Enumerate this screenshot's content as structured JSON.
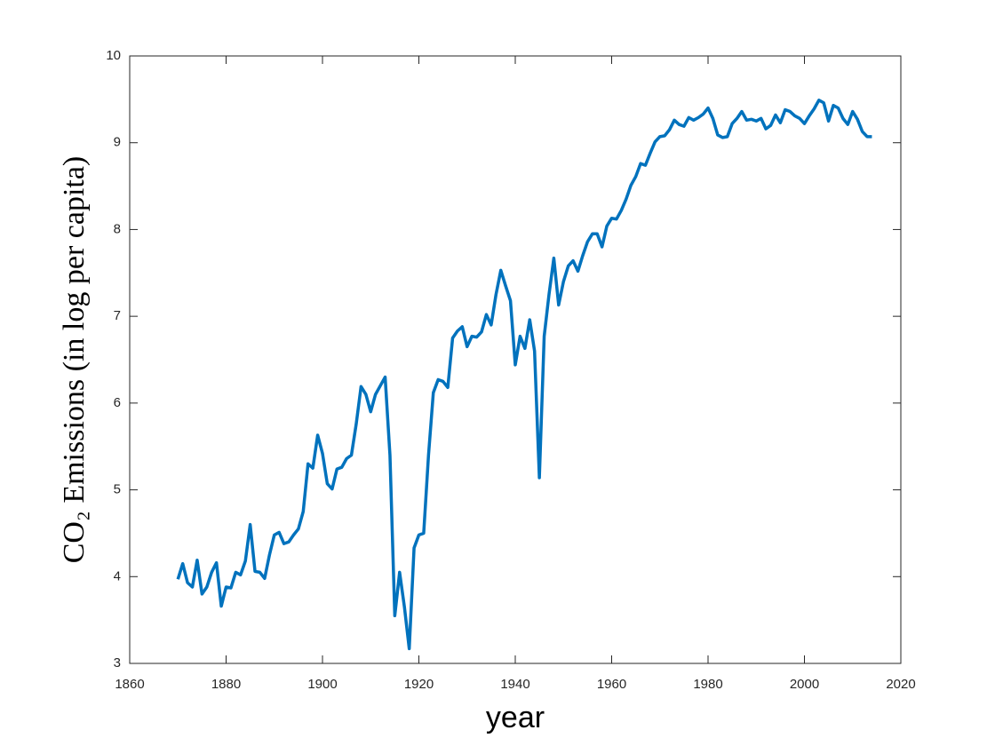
{
  "chart_data": {
    "type": "line",
    "xlabel": "year",
    "ylabel": "CO₂ Emissions (in log per capita)",
    "x": [
      1870,
      1871,
      1872,
      1873,
      1874,
      1875,
      1876,
      1877,
      1878,
      1879,
      1880,
      1881,
      1882,
      1883,
      1884,
      1885,
      1886,
      1887,
      1888,
      1889,
      1890,
      1891,
      1892,
      1893,
      1894,
      1895,
      1896,
      1897,
      1898,
      1899,
      1900,
      1901,
      1902,
      1903,
      1904,
      1905,
      1906,
      1907,
      1908,
      1909,
      1910,
      1911,
      1912,
      1913,
      1914,
      1915,
      1916,
      1917,
      1918,
      1919,
      1920,
      1921,
      1922,
      1923,
      1924,
      1925,
      1926,
      1927,
      1928,
      1929,
      1930,
      1931,
      1932,
      1933,
      1934,
      1935,
      1936,
      1937,
      1938,
      1939,
      1940,
      1941,
      1942,
      1943,
      1944,
      1945,
      1946,
      1947,
      1948,
      1949,
      1950,
      1951,
      1952,
      1953,
      1954,
      1955,
      1956,
      1957,
      1958,
      1959,
      1960,
      1961,
      1962,
      1963,
      1964,
      1965,
      1966,
      1967,
      1968,
      1969,
      1970,
      1971,
      1972,
      1973,
      1974,
      1975,
      1976,
      1977,
      1978,
      1979,
      1980,
      1981,
      1982,
      1983,
      1984,
      1985,
      1986,
      1987,
      1988,
      1989,
      1990,
      1991,
      1992,
      1993,
      1994,
      1995,
      1996,
      1997,
      1998,
      1999,
      2000,
      2001,
      2002,
      2003,
      2004,
      2005,
      2006,
      2007,
      2008,
      2009,
      2010,
      2011,
      2012,
      2013,
      2014
    ],
    "series": [
      {
        "color": "#0072bd",
        "values": [
          3.97,
          4.15,
          3.93,
          3.88,
          4.19,
          3.8,
          3.88,
          4.05,
          4.16,
          3.66,
          3.88,
          3.87,
          4.05,
          4.02,
          4.18,
          4.6,
          4.06,
          4.05,
          3.98,
          4.25,
          4.48,
          4.51,
          4.38,
          4.4,
          4.48,
          4.55,
          4.75,
          5.3,
          5.25,
          5.63,
          5.42,
          5.07,
          5.01,
          5.24,
          5.26,
          5.36,
          5.4,
          5.76,
          6.19,
          6.1,
          5.9,
          6.1,
          6.2,
          6.3,
          5.4,
          3.55,
          4.05,
          3.65,
          3.17,
          4.33,
          4.48,
          4.5,
          5.4,
          6.12,
          6.27,
          6.25,
          6.18,
          6.75,
          6.83,
          6.88,
          6.65,
          6.77,
          6.76,
          6.82,
          7.02,
          6.9,
          7.25,
          7.53,
          7.35,
          7.18,
          6.44,
          6.77,
          6.63,
          6.96,
          6.6,
          5.14,
          6.77,
          7.25,
          7.67,
          7.13,
          7.4,
          7.58,
          7.64,
          7.52,
          7.7,
          7.86,
          7.95,
          7.95,
          7.8,
          8.04,
          8.13,
          8.12,
          8.22,
          8.35,
          8.51,
          8.61,
          8.76,
          8.74,
          8.88,
          9.01,
          9.07,
          9.08,
          9.15,
          9.26,
          9.21,
          9.19,
          9.29,
          9.26,
          9.29,
          9.33,
          9.4,
          9.28,
          9.09,
          9.06,
          9.07,
          9.22,
          9.28,
          9.36,
          9.26,
          9.27,
          9.25,
          9.28,
          9.16,
          9.2,
          9.32,
          9.23,
          9.38,
          9.36,
          9.31,
          9.28,
          9.22,
          9.31,
          9.39,
          9.49,
          9.46,
          9.25,
          9.43,
          9.4,
          9.28,
          9.21,
          9.36,
          9.27,
          9.13,
          9.07,
          9.07
        ]
      }
    ],
    "xlim": [
      1860,
      2020
    ],
    "xticks": [
      1860,
      1880,
      1900,
      1920,
      1940,
      1960,
      1980,
      2000,
      2020
    ],
    "ylim": [
      3,
      10
    ],
    "yticks": [
      3,
      4,
      5,
      6,
      7,
      8,
      9,
      10
    ]
  }
}
